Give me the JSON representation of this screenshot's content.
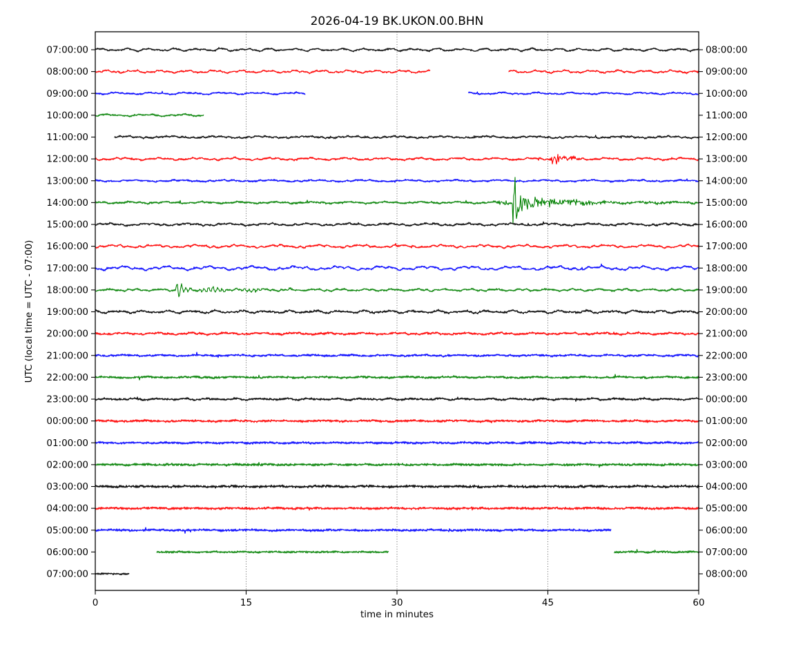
{
  "chart_data": {
    "type": "line",
    "subtype": "helicorder-dayplot",
    "title": "2026-04-19 BK.UKON.00.BHN",
    "xlabel": "time in minutes",
    "ylabel": "UTC (local time = UTC - 07:00)",
    "xlim": [
      0,
      60
    ],
    "x_ticks": [
      "0",
      "15",
      "30",
      "45",
      "60"
    ],
    "x_tick_values": [
      0,
      15,
      30,
      45,
      60
    ],
    "grid_x": [
      15,
      30,
      45
    ],
    "grid_style": "dotted-vertical",
    "minutes_per_line": 60,
    "color_cycle": [
      "#000000",
      "#ff0000",
      "#0000ff",
      "#008000"
    ],
    "rows": [
      {
        "utc_left": "07:00:00",
        "utc_right": "08:00:00",
        "color": "#000000",
        "segments": [
          [
            0,
            60
          ]
        ],
        "wave": 2.2,
        "fuzz": 0.9,
        "events": []
      },
      {
        "utc_left": "08:00:00",
        "utc_right": "09:00:00",
        "color": "#ff0000",
        "segments": [
          [
            0,
            33.3
          ],
          [
            41.1,
            60
          ]
        ],
        "wave": 2.2,
        "fuzz": 0.9,
        "events": []
      },
      {
        "utc_left": "09:00:00",
        "utc_right": "10:00:00",
        "color": "#0000ff",
        "segments": [
          [
            0,
            20.9
          ],
          [
            37.1,
            60
          ]
        ],
        "wave": 1.7,
        "fuzz": 0.9,
        "events": []
      },
      {
        "utc_left": "10:00:00",
        "utc_right": "11:00:00",
        "color": "#008000",
        "segments": [
          [
            0,
            10.8
          ]
        ],
        "wave": 1.7,
        "fuzz": 0.9,
        "events": []
      },
      {
        "utc_left": "11:00:00",
        "utc_right": "12:00:00",
        "color": "#000000",
        "segments": [
          [
            1.9,
            60
          ]
        ],
        "wave": 1.7,
        "fuzz": 1.0,
        "events": []
      },
      {
        "utc_left": "12:00:00",
        "utc_right": "13:00:00",
        "color": "#ff0000",
        "segments": [
          [
            0,
            60
          ]
        ],
        "wave": 2.0,
        "fuzz": 1.0,
        "events": [
          {
            "type": "burst",
            "t": 45.9,
            "amp": 9,
            "decay": 1.1
          }
        ]
      },
      {
        "utc_left": "13:00:00",
        "utc_right": "14:00:00",
        "color": "#0000ff",
        "segments": [
          [
            0,
            60
          ]
        ],
        "wave": 1.5,
        "fuzz": 1.0,
        "events": []
      },
      {
        "utc_left": "14:00:00",
        "utc_right": "15:00:00",
        "color": "#008000",
        "segments": [
          [
            0,
            60
          ]
        ],
        "wave": 1.5,
        "fuzz": 1.1,
        "events": [
          {
            "type": "quake",
            "t": 41.4,
            "spike": 30,
            "coda": 9,
            "coda_decay": 4.5
          }
        ]
      },
      {
        "utc_left": "15:00:00",
        "utc_right": "16:00:00",
        "color": "#000000",
        "segments": [
          [
            0,
            60
          ]
        ],
        "wave": 2.0,
        "fuzz": 1.1,
        "events": []
      },
      {
        "utc_left": "16:00:00",
        "utc_right": "17:00:00",
        "color": "#ff0000",
        "segments": [
          [
            0,
            60
          ]
        ],
        "wave": 2.4,
        "fuzz": 1.0,
        "events": []
      },
      {
        "utc_left": "17:00:00",
        "utc_right": "18:00:00",
        "color": "#0000ff",
        "segments": [
          [
            0,
            60
          ]
        ],
        "wave": 3.2,
        "fuzz": 1.0,
        "events": []
      },
      {
        "utc_left": "18:00:00",
        "utc_right": "19:00:00",
        "color": "#008000",
        "segments": [
          [
            0,
            60
          ]
        ],
        "wave": 1.8,
        "fuzz": 1.0,
        "events": [
          {
            "type": "ringing",
            "t": 8.0,
            "end": 19.5,
            "amp": 5.5,
            "period": 0.45
          }
        ]
      },
      {
        "utc_left": "19:00:00",
        "utc_right": "20:00:00",
        "color": "#000000",
        "segments": [
          [
            0,
            60
          ]
        ],
        "wave": 2.2,
        "fuzz": 1.2,
        "events": []
      },
      {
        "utc_left": "20:00:00",
        "utc_right": "21:00:00",
        "color": "#ff0000",
        "segments": [
          [
            0,
            60
          ]
        ],
        "wave": 1.6,
        "fuzz": 1.3,
        "events": []
      },
      {
        "utc_left": "21:00:00",
        "utc_right": "22:00:00",
        "color": "#0000ff",
        "segments": [
          [
            0,
            60
          ]
        ],
        "wave": 1.2,
        "fuzz": 1.3,
        "events": []
      },
      {
        "utc_left": "22:00:00",
        "utc_right": "23:00:00",
        "color": "#008000",
        "segments": [
          [
            0,
            60
          ]
        ],
        "wave": 1.0,
        "fuzz": 1.4,
        "events": []
      },
      {
        "utc_left": "23:00:00",
        "utc_right": "00:00:00",
        "color": "#000000",
        "segments": [
          [
            0,
            60
          ]
        ],
        "wave": 1.3,
        "fuzz": 1.3,
        "events": []
      },
      {
        "utc_left": "00:00:00",
        "utc_right": "01:00:00",
        "color": "#ff0000",
        "segments": [
          [
            0,
            60
          ]
        ],
        "wave": 0.9,
        "fuzz": 1.5,
        "events": []
      },
      {
        "utc_left": "01:00:00",
        "utc_right": "02:00:00",
        "color": "#0000ff",
        "segments": [
          [
            0,
            60
          ]
        ],
        "wave": 0.8,
        "fuzz": 1.5,
        "events": []
      },
      {
        "utc_left": "02:00:00",
        "utc_right": "03:00:00",
        "color": "#008000",
        "segments": [
          [
            0,
            60
          ]
        ],
        "wave": 0.7,
        "fuzz": 1.6,
        "events": []
      },
      {
        "utc_left": "03:00:00",
        "utc_right": "04:00:00",
        "color": "#000000",
        "segments": [
          [
            0,
            60
          ]
        ],
        "wave": 0.7,
        "fuzz": 1.8,
        "events": []
      },
      {
        "utc_left": "04:00:00",
        "utc_right": "05:00:00",
        "color": "#ff0000",
        "segments": [
          [
            0,
            60
          ]
        ],
        "wave": 0.7,
        "fuzz": 1.6,
        "events": []
      },
      {
        "utc_left": "05:00:00",
        "utc_right": "06:00:00",
        "color": "#0000ff",
        "segments": [
          [
            0,
            51.3
          ]
        ],
        "wave": 0.8,
        "fuzz": 1.5,
        "events": []
      },
      {
        "utc_left": "06:00:00",
        "utc_right": "07:00:00",
        "color": "#008000",
        "segments": [
          [
            6.1,
            29.2
          ],
          [
            51.6,
            60
          ]
        ],
        "wave": 0.6,
        "fuzz": 1.3,
        "events": []
      },
      {
        "utc_left": "07:00:00",
        "utc_right": "08:00:00",
        "color": "#000000",
        "segments": [
          [
            0,
            3.4
          ]
        ],
        "wave": 0.5,
        "fuzz": 1.2,
        "events": []
      }
    ]
  }
}
